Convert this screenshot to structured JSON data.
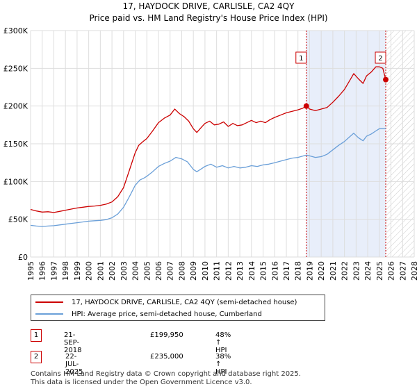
{
  "chart_data": {
    "type": "line",
    "title": "17, HAYDOCK DRIVE, CARLISLE, CA2 4QY",
    "subtitle": "Price paid vs. HM Land Registry's House Price Index (HPI)",
    "xlim": [
      1995,
      2028
    ],
    "ylim": [
      0,
      300000
    ],
    "xticks": [
      "1995",
      "1996",
      "1997",
      "1998",
      "1999",
      "2000",
      "2001",
      "2002",
      "2003",
      "2004",
      "2005",
      "2006",
      "2007",
      "2008",
      "2009",
      "2010",
      "2011",
      "2012",
      "2013",
      "2014",
      "2015",
      "2016",
      "2017",
      "2018",
      "2019",
      "2020",
      "2021",
      "2022",
      "2023",
      "2024",
      "2025",
      "2026",
      "2027",
      "2028"
    ],
    "yticks": [
      {
        "value": 0,
        "label": "£0"
      },
      {
        "value": 50000,
        "label": "£50K"
      },
      {
        "value": 100000,
        "label": "£100K"
      },
      {
        "value": 150000,
        "label": "£150K"
      },
      {
        "value": 200000,
        "label": "£200K"
      },
      {
        "value": 250000,
        "label": "£250K"
      },
      {
        "value": 300000,
        "label": "£300K"
      }
    ],
    "grid": true,
    "shaded_span": [
      2018.72,
      2025.55
    ],
    "forecast_hatch_from": 2025.55,
    "series": [
      {
        "name": "17, HAYDOCK DRIVE, CARLISLE, CA2 4QY (semi-detached house)",
        "color": "#cc0000",
        "points": [
          [
            1995.0,
            63000
          ],
          [
            1995.5,
            61000
          ],
          [
            1996.0,
            59500
          ],
          [
            1996.5,
            60000
          ],
          [
            1997.0,
            59000
          ],
          [
            1997.5,
            60500
          ],
          [
            1998.0,
            62000
          ],
          [
            1998.5,
            63500
          ],
          [
            1999.0,
            65000
          ],
          [
            1999.5,
            66000
          ],
          [
            2000.0,
            67000
          ],
          [
            2000.5,
            67500
          ],
          [
            2001.0,
            68500
          ],
          [
            2001.5,
            70000
          ],
          [
            2002.0,
            73000
          ],
          [
            2002.5,
            80000
          ],
          [
            2003.0,
            92000
          ],
          [
            2003.5,
            115000
          ],
          [
            2004.0,
            138000
          ],
          [
            2004.3,
            148000
          ],
          [
            2004.6,
            152000
          ],
          [
            2005.0,
            157000
          ],
          [
            2005.5,
            167000
          ],
          [
            2006.0,
            178000
          ],
          [
            2006.5,
            184000
          ],
          [
            2007.0,
            188000
          ],
          [
            2007.4,
            196000
          ],
          [
            2007.8,
            190000
          ],
          [
            2008.2,
            186000
          ],
          [
            2008.6,
            180000
          ],
          [
            2009.0,
            170000
          ],
          [
            2009.3,
            165000
          ],
          [
            2009.7,
            172000
          ],
          [
            2010.0,
            177000
          ],
          [
            2010.4,
            180000
          ],
          [
            2010.8,
            175000
          ],
          [
            2011.2,
            176000
          ],
          [
            2011.6,
            179000
          ],
          [
            2012.0,
            173000
          ],
          [
            2012.4,
            177000
          ],
          [
            2012.8,
            174000
          ],
          [
            2013.2,
            175000
          ],
          [
            2013.6,
            178000
          ],
          [
            2014.0,
            181000
          ],
          [
            2014.4,
            178000
          ],
          [
            2014.8,
            180000
          ],
          [
            2015.2,
            178000
          ],
          [
            2015.6,
            182000
          ],
          [
            2016.0,
            185000
          ],
          [
            2016.5,
            188000
          ],
          [
            2017.0,
            191000
          ],
          [
            2017.5,
            193000
          ],
          [
            2018.0,
            195000
          ],
          [
            2018.4,
            197000
          ],
          [
            2018.72,
            199950
          ],
          [
            2019.0,
            196000
          ],
          [
            2019.5,
            194000
          ],
          [
            2020.0,
            196000
          ],
          [
            2020.5,
            198000
          ],
          [
            2021.0,
            205000
          ],
          [
            2021.5,
            213000
          ],
          [
            2022.0,
            222000
          ],
          [
            2022.5,
            235000
          ],
          [
            2022.8,
            243000
          ],
          [
            2023.2,
            236000
          ],
          [
            2023.6,
            230000
          ],
          [
            2023.9,
            240000
          ],
          [
            2024.3,
            245000
          ],
          [
            2024.7,
            252000
          ],
          [
            2025.0,
            252000
          ],
          [
            2025.3,
            250000
          ],
          [
            2025.55,
            235000
          ]
        ]
      },
      {
        "name": "HPI: Average price, semi-detached house, Cumberland",
        "color": "#6a9fd8",
        "points": [
          [
            1995.0,
            42000
          ],
          [
            1995.5,
            41000
          ],
          [
            1996.0,
            40500
          ],
          [
            1996.5,
            41000
          ],
          [
            1997.0,
            41500
          ],
          [
            1997.5,
            42500
          ],
          [
            1998.0,
            43500
          ],
          [
            1998.5,
            44500
          ],
          [
            1999.0,
            45500
          ],
          [
            1999.5,
            46500
          ],
          [
            2000.0,
            47500
          ],
          [
            2000.5,
            48000
          ],
          [
            2001.0,
            48500
          ],
          [
            2001.5,
            49500
          ],
          [
            2002.0,
            52000
          ],
          [
            2002.5,
            57000
          ],
          [
            2003.0,
            66000
          ],
          [
            2003.5,
            80000
          ],
          [
            2004.0,
            95000
          ],
          [
            2004.4,
            102000
          ],
          [
            2004.8,
            105000
          ],
          [
            2005.0,
            107000
          ],
          [
            2005.5,
            113000
          ],
          [
            2006.0,
            120000
          ],
          [
            2006.5,
            124000
          ],
          [
            2007.0,
            127000
          ],
          [
            2007.5,
            132000
          ],
          [
            2008.0,
            130000
          ],
          [
            2008.5,
            126000
          ],
          [
            2009.0,
            116000
          ],
          [
            2009.3,
            113000
          ],
          [
            2009.7,
            117000
          ],
          [
            2010.0,
            120000
          ],
          [
            2010.5,
            123000
          ],
          [
            2011.0,
            119000
          ],
          [
            2011.5,
            121000
          ],
          [
            2012.0,
            118000
          ],
          [
            2012.5,
            120000
          ],
          [
            2013.0,
            118000
          ],
          [
            2013.5,
            119000
          ],
          [
            2014.0,
            121000
          ],
          [
            2014.5,
            120000
          ],
          [
            2015.0,
            122000
          ],
          [
            2015.5,
            123000
          ],
          [
            2016.0,
            125000
          ],
          [
            2016.5,
            127000
          ],
          [
            2017.0,
            129000
          ],
          [
            2017.5,
            131000
          ],
          [
            2018.0,
            132000
          ],
          [
            2018.72,
            135000
          ],
          [
            2019.0,
            134000
          ],
          [
            2019.5,
            132000
          ],
          [
            2020.0,
            133000
          ],
          [
            2020.5,
            136000
          ],
          [
            2021.0,
            142000
          ],
          [
            2021.5,
            148000
          ],
          [
            2022.0,
            153000
          ],
          [
            2022.5,
            160000
          ],
          [
            2022.8,
            164000
          ],
          [
            2023.2,
            158000
          ],
          [
            2023.6,
            154000
          ],
          [
            2023.9,
            160000
          ],
          [
            2024.3,
            163000
          ],
          [
            2024.7,
            167000
          ],
          [
            2025.0,
            170000
          ],
          [
            2025.55,
            170000
          ]
        ]
      }
    ],
    "markers": [
      {
        "label": "1",
        "x": 2018.72,
        "y": 199950
      },
      {
        "label": "2",
        "x": 2025.55,
        "y": 235000
      }
    ]
  },
  "legend": {
    "red_label": "17, HAYDOCK DRIVE, CARLISLE, CA2 4QY (semi-detached house)",
    "blue_label": "HPI: Average price, semi-detached house, Cumberland"
  },
  "annotations": [
    {
      "label": "1",
      "date": "21-SEP-2018",
      "price": "£199,950",
      "hpi": "48% ↑ HPI"
    },
    {
      "label": "2",
      "date": "22-JUL-2025",
      "price": "£235,000",
      "hpi": "38% ↑ HPI"
    }
  ],
  "footer": {
    "line1": "Contains HM Land Registry data © Crown copyright and database right 2025.",
    "line2": "This data is licensed under the Open Government Licence v3.0."
  },
  "colors": {
    "red": "#cc0000",
    "blue": "#6a9fd8",
    "shade": "#e8eefa",
    "grid": "#dddddd"
  }
}
